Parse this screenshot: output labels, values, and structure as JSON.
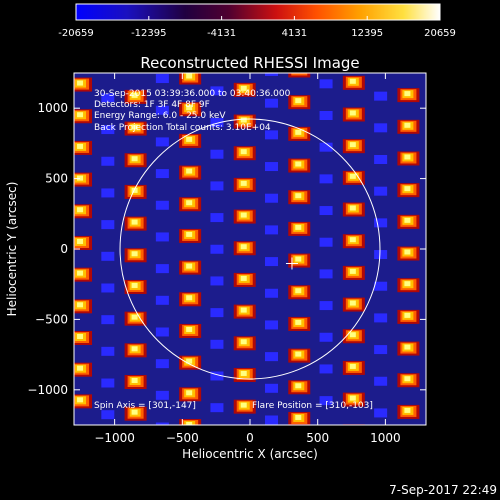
{
  "colorbar": {
    "ticks": [
      "-20659",
      "-12395",
      "-4131",
      "4131",
      "12395",
      "20659"
    ],
    "range": [
      -20659,
      20659
    ],
    "colormap": [
      "#0000ff",
      "#000000",
      "#ff0000",
      "#ffff00",
      "#ffffff"
    ]
  },
  "chart_data": {
    "type": "heatmap",
    "title": "Reconstructed RHESSI Image",
    "xlabel": "Heliocentric X (arcsec)",
    "ylabel": "Heliocentric Y (arcsec)",
    "xlim": [
      -1300,
      1300
    ],
    "ylim": [
      -1250,
      1250
    ],
    "xticks": [
      -1000,
      -500,
      0,
      500,
      1000
    ],
    "yticks": [
      -1000,
      -500,
      0,
      500,
      1000
    ],
    "xtick_labels": [
      "−1000",
      "−500",
      "0",
      "500",
      "1000"
    ],
    "ytick_labels": [
      "−1000",
      "−500",
      "0",
      "500",
      "1000"
    ],
    "solar_disk": {
      "center": [
        0,
        0
      ],
      "radius_arcsec": 960
    },
    "flare_marker": [
      310,
      -103
    ],
    "annotations": [
      "30-Sep-2015 03:39:36.000 to 03:40:36.000",
      "Detectors: 1F 3F 4F 8F 9F",
      "Energy Range: 6.0 - 25.0 keV",
      "Back Projection   Total counts: 3.10E+04"
    ],
    "footer": {
      "spin_axis": "Spin Axis = [301,-147]",
      "flare_position": "Flare Position = [310,-103]"
    }
  },
  "timestamp": "7-Sep-2017 22:49"
}
